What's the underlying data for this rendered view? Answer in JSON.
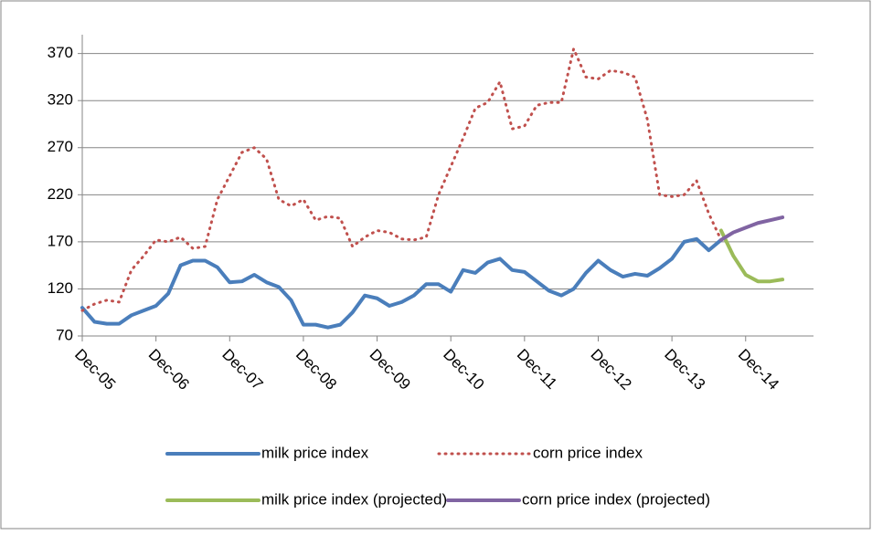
{
  "chart_data": {
    "type": "line",
    "categories": [
      "Dec-05",
      null,
      null,
      null,
      null,
      null,
      "Dec-06",
      null,
      null,
      null,
      null,
      null,
      "Dec-07",
      null,
      null,
      null,
      null,
      null,
      "Dec-08",
      null,
      null,
      null,
      null,
      null,
      "Dec-09",
      null,
      null,
      null,
      null,
      null,
      "Dec-10",
      null,
      null,
      null,
      null,
      null,
      "Dec-11",
      null,
      null,
      null,
      null,
      null,
      "Dec-12",
      null,
      null,
      null,
      null,
      null,
      "Dec-13",
      null,
      null,
      null,
      null,
      null,
      "Dec-14",
      null,
      null,
      null
    ],
    "series": [
      {
        "name": "milk price index",
        "color": "#4a7ebb",
        "style": "solid",
        "values": [
          100,
          85,
          83,
          83,
          92,
          97,
          102,
          115,
          145,
          150,
          150,
          143,
          127,
          128,
          135,
          127,
          122,
          108,
          82,
          82,
          79,
          82,
          95,
          113,
          110,
          102,
          106,
          113,
          125,
          125,
          117,
          140,
          137,
          148,
          152,
          140,
          138,
          128,
          118,
          113,
          120,
          137,
          150,
          140,
          133,
          136,
          134,
          142,
          152,
          170,
          173,
          161,
          172,
          null,
          null,
          null,
          null,
          null
        ]
      },
      {
        "name": "corn price index",
        "color": "#c0504d",
        "style": "dotted",
        "values": [
          97,
          104,
          108,
          106,
          140,
          155,
          172,
          170,
          175,
          163,
          165,
          215,
          240,
          265,
          270,
          258,
          215,
          208,
          215,
          193,
          197,
          195,
          165,
          175,
          182,
          180,
          173,
          172,
          175,
          220,
          250,
          280,
          312,
          318,
          340,
          290,
          293,
          315,
          318,
          318,
          375,
          345,
          343,
          352,
          350,
          345,
          300,
          220,
          218,
          220,
          235,
          200,
          172,
          null,
          null,
          null,
          null,
          null
        ]
      },
      {
        "name": "milk price index (projected)",
        "color": "#9bbb59",
        "style": "solid",
        "values": [
          null,
          null,
          null,
          null,
          null,
          null,
          null,
          null,
          null,
          null,
          null,
          null,
          null,
          null,
          null,
          null,
          null,
          null,
          null,
          null,
          null,
          null,
          null,
          null,
          null,
          null,
          null,
          null,
          null,
          null,
          null,
          null,
          null,
          null,
          null,
          null,
          null,
          null,
          null,
          null,
          null,
          null,
          null,
          null,
          null,
          null,
          null,
          null,
          null,
          null,
          null,
          null,
          182,
          155,
          135,
          128,
          128,
          130
        ]
      },
      {
        "name": "corn price index (projected)",
        "color": "#8064a2",
        "style": "solid",
        "values": [
          null,
          null,
          null,
          null,
          null,
          null,
          null,
          null,
          null,
          null,
          null,
          null,
          null,
          null,
          null,
          null,
          null,
          null,
          null,
          null,
          null,
          null,
          null,
          null,
          null,
          null,
          null,
          null,
          null,
          null,
          null,
          null,
          null,
          null,
          null,
          null,
          null,
          null,
          null,
          null,
          null,
          null,
          null,
          null,
          null,
          null,
          null,
          null,
          null,
          null,
          null,
          null,
          172,
          180,
          185,
          190,
          193,
          196
        ]
      }
    ],
    "ylim": [
      70,
      390
    ],
    "yticks": [
      70,
      120,
      170,
      220,
      270,
      320,
      370
    ],
    "grid": true
  }
}
